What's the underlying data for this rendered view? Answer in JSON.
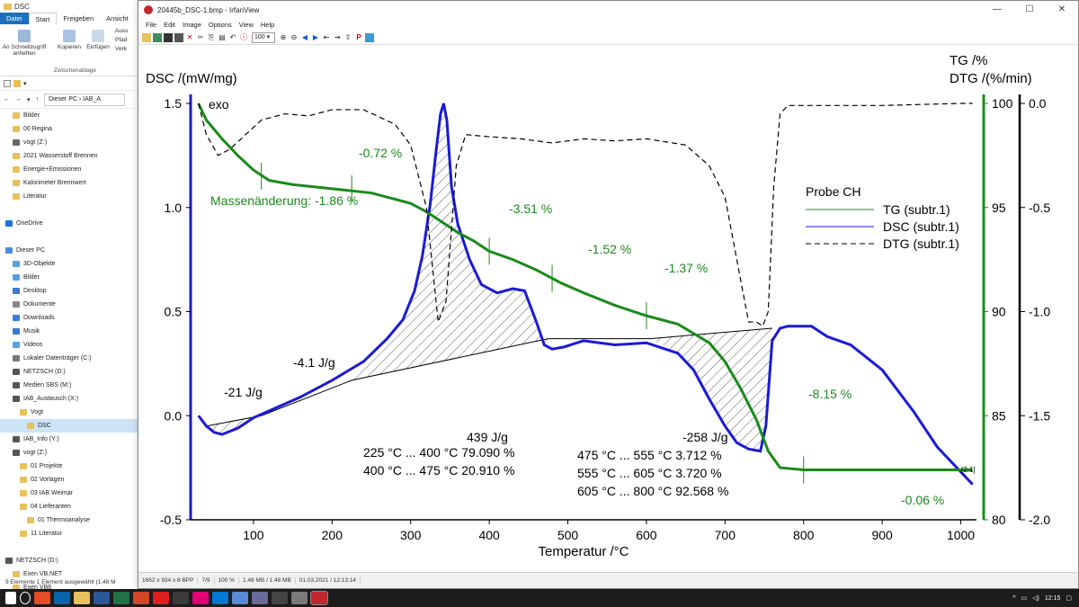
{
  "explorer": {
    "title": "DSC",
    "tabs": [
      "Datei",
      "Start",
      "Freigeben",
      "Ansicht"
    ],
    "ribbon": {
      "pin": "An Schnellzugriff anheften",
      "copy": "Kopieren",
      "paste": "Einfügen",
      "cut": "Auss",
      "path": "Pfad",
      "link": "Verk",
      "group": "Zwischenablage"
    },
    "address": [
      "Dieser PC",
      "IAB_A"
    ],
    "nav": [
      {
        "label": "Bilder",
        "indent": 1,
        "icon": "#e8c15a"
      },
      {
        "label": "00 Regina",
        "indent": 1,
        "icon": "#e8c15a"
      },
      {
        "label": "vogt (Z:)",
        "indent": 1,
        "icon": "#666"
      },
      {
        "label": "2021 Wasserstoff Brennen",
        "indent": 1,
        "icon": "#e8c15a"
      },
      {
        "label": "Energie+Emissionen",
        "indent": 1,
        "icon": "#e8c15a"
      },
      {
        "label": "Kalorimeter Brennwert",
        "indent": 1,
        "icon": "#e8c15a"
      },
      {
        "label": "Literatur",
        "indent": 1,
        "icon": "#e8c15a"
      },
      {
        "label": "",
        "indent": 0,
        "icon": ""
      },
      {
        "label": "OneDrive",
        "indent": 0,
        "icon": "#1a73d9"
      },
      {
        "label": "",
        "indent": 0,
        "icon": ""
      },
      {
        "label": "Dieser PC",
        "indent": 0,
        "icon": "#4a90d9"
      },
      {
        "label": "3D-Objekte",
        "indent": 1,
        "icon": "#5aa0e0"
      },
      {
        "label": "Bilder",
        "indent": 1,
        "icon": "#5aa0e0"
      },
      {
        "label": "Desktop",
        "indent": 1,
        "icon": "#3a7bd5"
      },
      {
        "label": "Dokumente",
        "indent": 1,
        "icon": "#888"
      },
      {
        "label": "Downloads",
        "indent": 1,
        "icon": "#3a7bd5"
      },
      {
        "label": "Musik",
        "indent": 1,
        "icon": "#3a7bd5"
      },
      {
        "label": "Videos",
        "indent": 1,
        "icon": "#5aa0e0"
      },
      {
        "label": "Lokaler Datenträger (C:)",
        "indent": 1,
        "icon": "#777"
      },
      {
        "label": "NETZSCH (D:)",
        "indent": 1,
        "icon": "#555"
      },
      {
        "label": "Medien SBS (M:)",
        "indent": 1,
        "icon": "#555"
      },
      {
        "label": "IAB_Austausch (X:)",
        "indent": 1,
        "icon": "#555"
      },
      {
        "label": "Vogt",
        "indent": 2,
        "icon": "#e8c15a"
      },
      {
        "label": "DSC",
        "indent": 3,
        "icon": "#e8c15a",
        "selected": true
      },
      {
        "label": "IAB_Info (Y:)",
        "indent": 1,
        "icon": "#555"
      },
      {
        "label": "vogt (Z:)",
        "indent": 1,
        "icon": "#555"
      },
      {
        "label": "01 Projekte",
        "indent": 2,
        "icon": "#e8c15a"
      },
      {
        "label": "02 Vorlagen",
        "indent": 2,
        "icon": "#e8c15a"
      },
      {
        "label": "03 IAB Weimar",
        "indent": 2,
        "icon": "#e8c15a"
      },
      {
        "label": "04 Lieferanten",
        "indent": 2,
        "icon": "#e8c15a"
      },
      {
        "label": "01 Thermoanalyse",
        "indent": 3,
        "icon": "#e8c15a"
      },
      {
        "label": "11 Literatur",
        "indent": 2,
        "icon": "#e8c15a"
      },
      {
        "label": "",
        "indent": 0,
        "icon": ""
      },
      {
        "label": "NETZSCH (D:)",
        "indent": 0,
        "icon": "#555"
      },
      {
        "label": "Exen VB.NET",
        "indent": 1,
        "icon": "#e8c15a"
      },
      {
        "label": "Exen VB6",
        "indent": 1,
        "icon": "#e8c15a"
      }
    ],
    "status": "9 Elemente     1 Element ausgewählt (1,48 M"
  },
  "irfanview": {
    "title": "20445b_DSC-1.bmp - IrfanView",
    "menu": [
      "File",
      "Edit",
      "Image",
      "Options",
      "View",
      "Help"
    ],
    "zoom": "100",
    "status": [
      "1662 x 934 x 8 BPP",
      "7/9",
      "100 %",
      "1.48 MB / 1.48 MB",
      "01.03.2021 / 12:13:14"
    ]
  },
  "taskbar": {
    "time": "12:15"
  },
  "chart_data": {
    "type": "line",
    "x_label": "Temperatur /°C",
    "x_ticks": [
      100,
      200,
      300,
      400,
      500,
      600,
      700,
      800,
      900,
      1000
    ],
    "xlim": [
      20,
      1020
    ],
    "dsc_axis": {
      "label": "DSC /(mW/mg)",
      "ticks": [
        "1.5",
        "1.0",
        "0.5",
        "0.0",
        "-0.5"
      ],
      "range": [
        -0.5,
        1.5
      ]
    },
    "tg_axis": {
      "label": "TG /%",
      "ticks": [
        "100",
        "95",
        "90",
        "85",
        "80"
      ],
      "range": [
        80,
        100
      ]
    },
    "dtg_axis": {
      "label": "DTG /(%/min)",
      "ticks": [
        "0.0",
        "-0.5",
        "-1.0",
        "-1.5",
        "-2.0"
      ],
      "range": [
        -2.0,
        0.0
      ]
    },
    "exo_label": "exo",
    "legend": {
      "title": "Probe CH",
      "entries": [
        "TG (subtr.1)",
        "DSC (subtr.1)",
        "DTG (subtr.1)"
      ]
    },
    "series": [
      {
        "name": "DSC (subtr.1)",
        "color": "#1a1ad6",
        "axis": "dsc",
        "x": [
          30,
          40,
          50,
          60,
          80,
          100,
          130,
          160,
          200,
          240,
          270,
          290,
          305,
          315,
          325,
          332,
          338,
          342,
          346,
          352,
          360,
          375,
          390,
          410,
          430,
          445,
          460,
          470,
          480,
          495,
          520,
          560,
          600,
          640,
          660,
          680,
          700,
          715,
          730,
          745,
          752,
          760,
          770,
          780,
          810,
          830,
          860,
          900,
          940,
          970,
          1000,
          1015
        ],
        "y": [
          0.0,
          -0.05,
          -0.08,
          -0.09,
          -0.06,
          -0.01,
          0.04,
          0.09,
          0.17,
          0.26,
          0.37,
          0.46,
          0.6,
          0.77,
          1.02,
          1.26,
          1.45,
          1.5,
          1.42,
          1.1,
          0.92,
          0.75,
          0.63,
          0.59,
          0.61,
          0.6,
          0.45,
          0.34,
          0.32,
          0.33,
          0.36,
          0.34,
          0.35,
          0.3,
          0.22,
          0.08,
          -0.05,
          -0.13,
          -0.16,
          -0.17,
          -0.05,
          0.36,
          0.42,
          0.43,
          0.43,
          0.38,
          0.34,
          0.22,
          0.02,
          -0.15,
          -0.27,
          -0.33
        ]
      },
      {
        "name": "TG (subtr.1)",
        "color": "#1b8a1b",
        "axis": "tg",
        "x": [
          30,
          40,
          60,
          80,
          100,
          120,
          150,
          200,
          250,
          300,
          320,
          340,
          360,
          380,
          400,
          430,
          460,
          490,
          520,
          560,
          600,
          640,
          680,
          700,
          720,
          740,
          755,
          770,
          800,
          900,
          1000,
          1015
        ],
        "y": [
          100.0,
          99.2,
          98.3,
          97.5,
          96.8,
          96.3,
          96.1,
          95.9,
          95.7,
          95.2,
          94.8,
          94.3,
          93.8,
          93.4,
          92.9,
          92.5,
          92.0,
          91.4,
          90.9,
          90.3,
          89.8,
          89.4,
          88.5,
          87.6,
          86.3,
          84.8,
          83.3,
          82.5,
          82.4,
          82.4,
          82.4,
          82.4
        ]
      },
      {
        "name": "DTG (subtr.1)",
        "color": "#000000",
        "axis": "dtg",
        "x": [
          30,
          40,
          55,
          70,
          90,
          110,
          140,
          170,
          200,
          240,
          280,
          300,
          320,
          335,
          345,
          350,
          358,
          370,
          400,
          440,
          480,
          520,
          560,
          600,
          650,
          680,
          700,
          715,
          730,
          740,
          748,
          755,
          762,
          770,
          780,
          800,
          900,
          1000,
          1015
        ],
        "y": [
          0.0,
          -0.15,
          -0.25,
          -0.22,
          -0.15,
          -0.08,
          -0.05,
          -0.06,
          -0.03,
          -0.03,
          -0.1,
          -0.2,
          -0.5,
          -1.05,
          -0.95,
          -0.7,
          -0.3,
          -0.15,
          -0.16,
          -0.17,
          -0.19,
          -0.17,
          -0.18,
          -0.17,
          -0.2,
          -0.3,
          -0.45,
          -0.75,
          -1.05,
          -1.05,
          -1.07,
          -1.0,
          -0.4,
          -0.05,
          -0.01,
          -0.01,
          -0.01,
          0.0,
          0.0
        ]
      }
    ],
    "annotations": [
      "-0.72 %",
      "Massenänderung: -1.86 %",
      "-3.51 %",
      "-1.52 %",
      "-1.37 %",
      "-8.15 %",
      "-0.06 %",
      "-21 J/g",
      "-4.1 J/g",
      "439 J/g",
      "225 °C ... 400 °C  79.090 %",
      "400 °C ... 475 °C  20.910 %",
      "-258 J/g",
      "475 °C ... 555 °C    3.712 %",
      "555 °C ... 605 °C    3.720 %",
      "605 °C ... 800 °C  92.568 %",
      "[2.1]"
    ]
  }
}
